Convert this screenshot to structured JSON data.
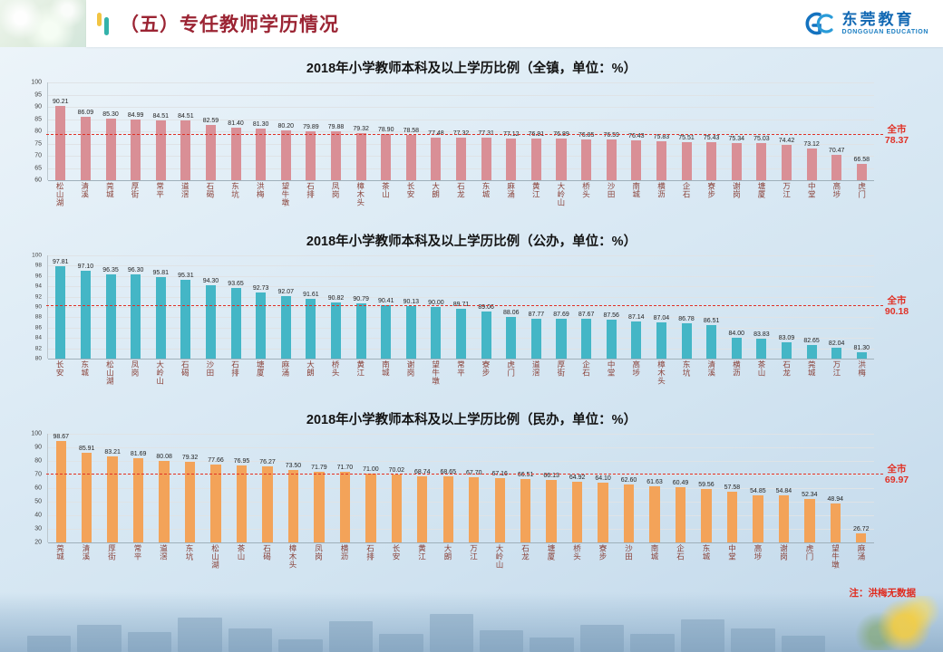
{
  "header": {
    "title": "（五）专任教师学历情况",
    "logo": {
      "name_cn": "东莞教育",
      "name_en": "DONGGUAN EDUCATION"
    }
  },
  "footnote": "注：洪梅无数据",
  "chart_data": [
    {
      "type": "bar",
      "title": "2018年小学教师本科及以上学历比例（全镇，单位：%）",
      "xlabel": "",
      "ylabel": "",
      "ylim": [
        60,
        100
      ],
      "ytick_step": 5,
      "grid": true,
      "bar_color": "#d98f96",
      "average": {
        "label": "全市",
        "value": 78.37
      },
      "categories": [
        "松山湖",
        "清溪",
        "莞城",
        "厚街",
        "常平",
        "道滘",
        "石碣",
        "东坑",
        "洪梅",
        "望牛墩",
        "石排",
        "凤岗",
        "樟木头",
        "茶山",
        "长安",
        "大朗",
        "石龙",
        "东城",
        "麻涌",
        "黄江",
        "大岭山",
        "桥头",
        "沙田",
        "南城",
        "横沥",
        "企石",
        "寮步",
        "谢岗",
        "塘厦",
        "万江",
        "中堂",
        "高埗",
        "虎门"
      ],
      "values": [
        90.21,
        86.09,
        85.3,
        84.99,
        84.51,
        84.51,
        82.59,
        81.4,
        81.3,
        80.2,
        79.89,
        79.88,
        79.32,
        78.9,
        78.58,
        77.48,
        77.32,
        77.31,
        77.12,
        76.91,
        76.89,
        76.85,
        76.59,
        76.43,
        75.83,
        75.51,
        75.43,
        75.34,
        75.03,
        74.42,
        73.12,
        70.47,
        66.58
      ]
    },
    {
      "type": "bar",
      "title": "2018年小学教师本科及以上学历比例（公办，单位：%）",
      "xlabel": "",
      "ylabel": "",
      "ylim": [
        80,
        100
      ],
      "ytick_step": 2,
      "grid": true,
      "bar_color": "#44b6c6",
      "average": {
        "label": "全市",
        "value": 90.18
      },
      "categories": [
        "长安",
        "东城",
        "松山湖",
        "凤岗",
        "大岭山",
        "石碣",
        "沙田",
        "石排",
        "塘厦",
        "麻涌",
        "大朗",
        "桥头",
        "黄江",
        "南城",
        "谢岗",
        "望牛墩",
        "常平",
        "寮步",
        "虎门",
        "道滘",
        "厚街",
        "企石",
        "中堂",
        "高埗",
        "樟木头",
        "东坑",
        "清溪",
        "横沥",
        "茶山",
        "石龙",
        "莞城",
        "万江",
        "洪梅"
      ],
      "values": [
        97.81,
        97.1,
        96.35,
        96.3,
        95.81,
        95.31,
        94.3,
        93.65,
        92.73,
        92.07,
        91.61,
        90.82,
        90.79,
        90.41,
        90.13,
        90.0,
        89.71,
        89.06,
        88.06,
        87.77,
        87.69,
        87.67,
        87.56,
        87.14,
        87.04,
        86.78,
        86.51,
        84.0,
        83.83,
        83.09,
        82.65,
        82.04,
        81.3
      ]
    },
    {
      "type": "bar",
      "title": "2018年小学教师本科及以上学历比例（民办，单位：%）",
      "xlabel": "",
      "ylabel": "",
      "ylim": [
        20,
        100
      ],
      "ytick_step": 10,
      "grid": true,
      "bar_color": "#f3a359",
      "average": {
        "label": "全市",
        "value": 69.97
      },
      "categories": [
        "莞城",
        "清溪",
        "厚街",
        "常平",
        "道滘",
        "东坑",
        "松山湖",
        "茶山",
        "石碣",
        "樟木头",
        "凤岗",
        "横沥",
        "石排",
        "长安",
        "黄江",
        "大朗",
        "万江",
        "大岭山",
        "石龙",
        "塘厦",
        "桥头",
        "寮步",
        "沙田",
        "南城",
        "企石",
        "东城",
        "中堂",
        "高埗",
        "谢岗",
        "虎门",
        "望牛墩",
        "麻涌"
      ],
      "values": [
        98.67,
        85.91,
        83.21,
        81.69,
        80.08,
        79.32,
        77.66,
        76.95,
        76.27,
        73.5,
        71.79,
        71.7,
        71.0,
        70.02,
        68.74,
        68.65,
        67.7,
        67.16,
        66.51,
        66.13,
        64.92,
        64.1,
        62.6,
        61.63,
        60.49,
        59.56,
        57.58,
        54.85,
        54.84,
        52.34,
        48.94,
        26.72
      ]
    }
  ]
}
